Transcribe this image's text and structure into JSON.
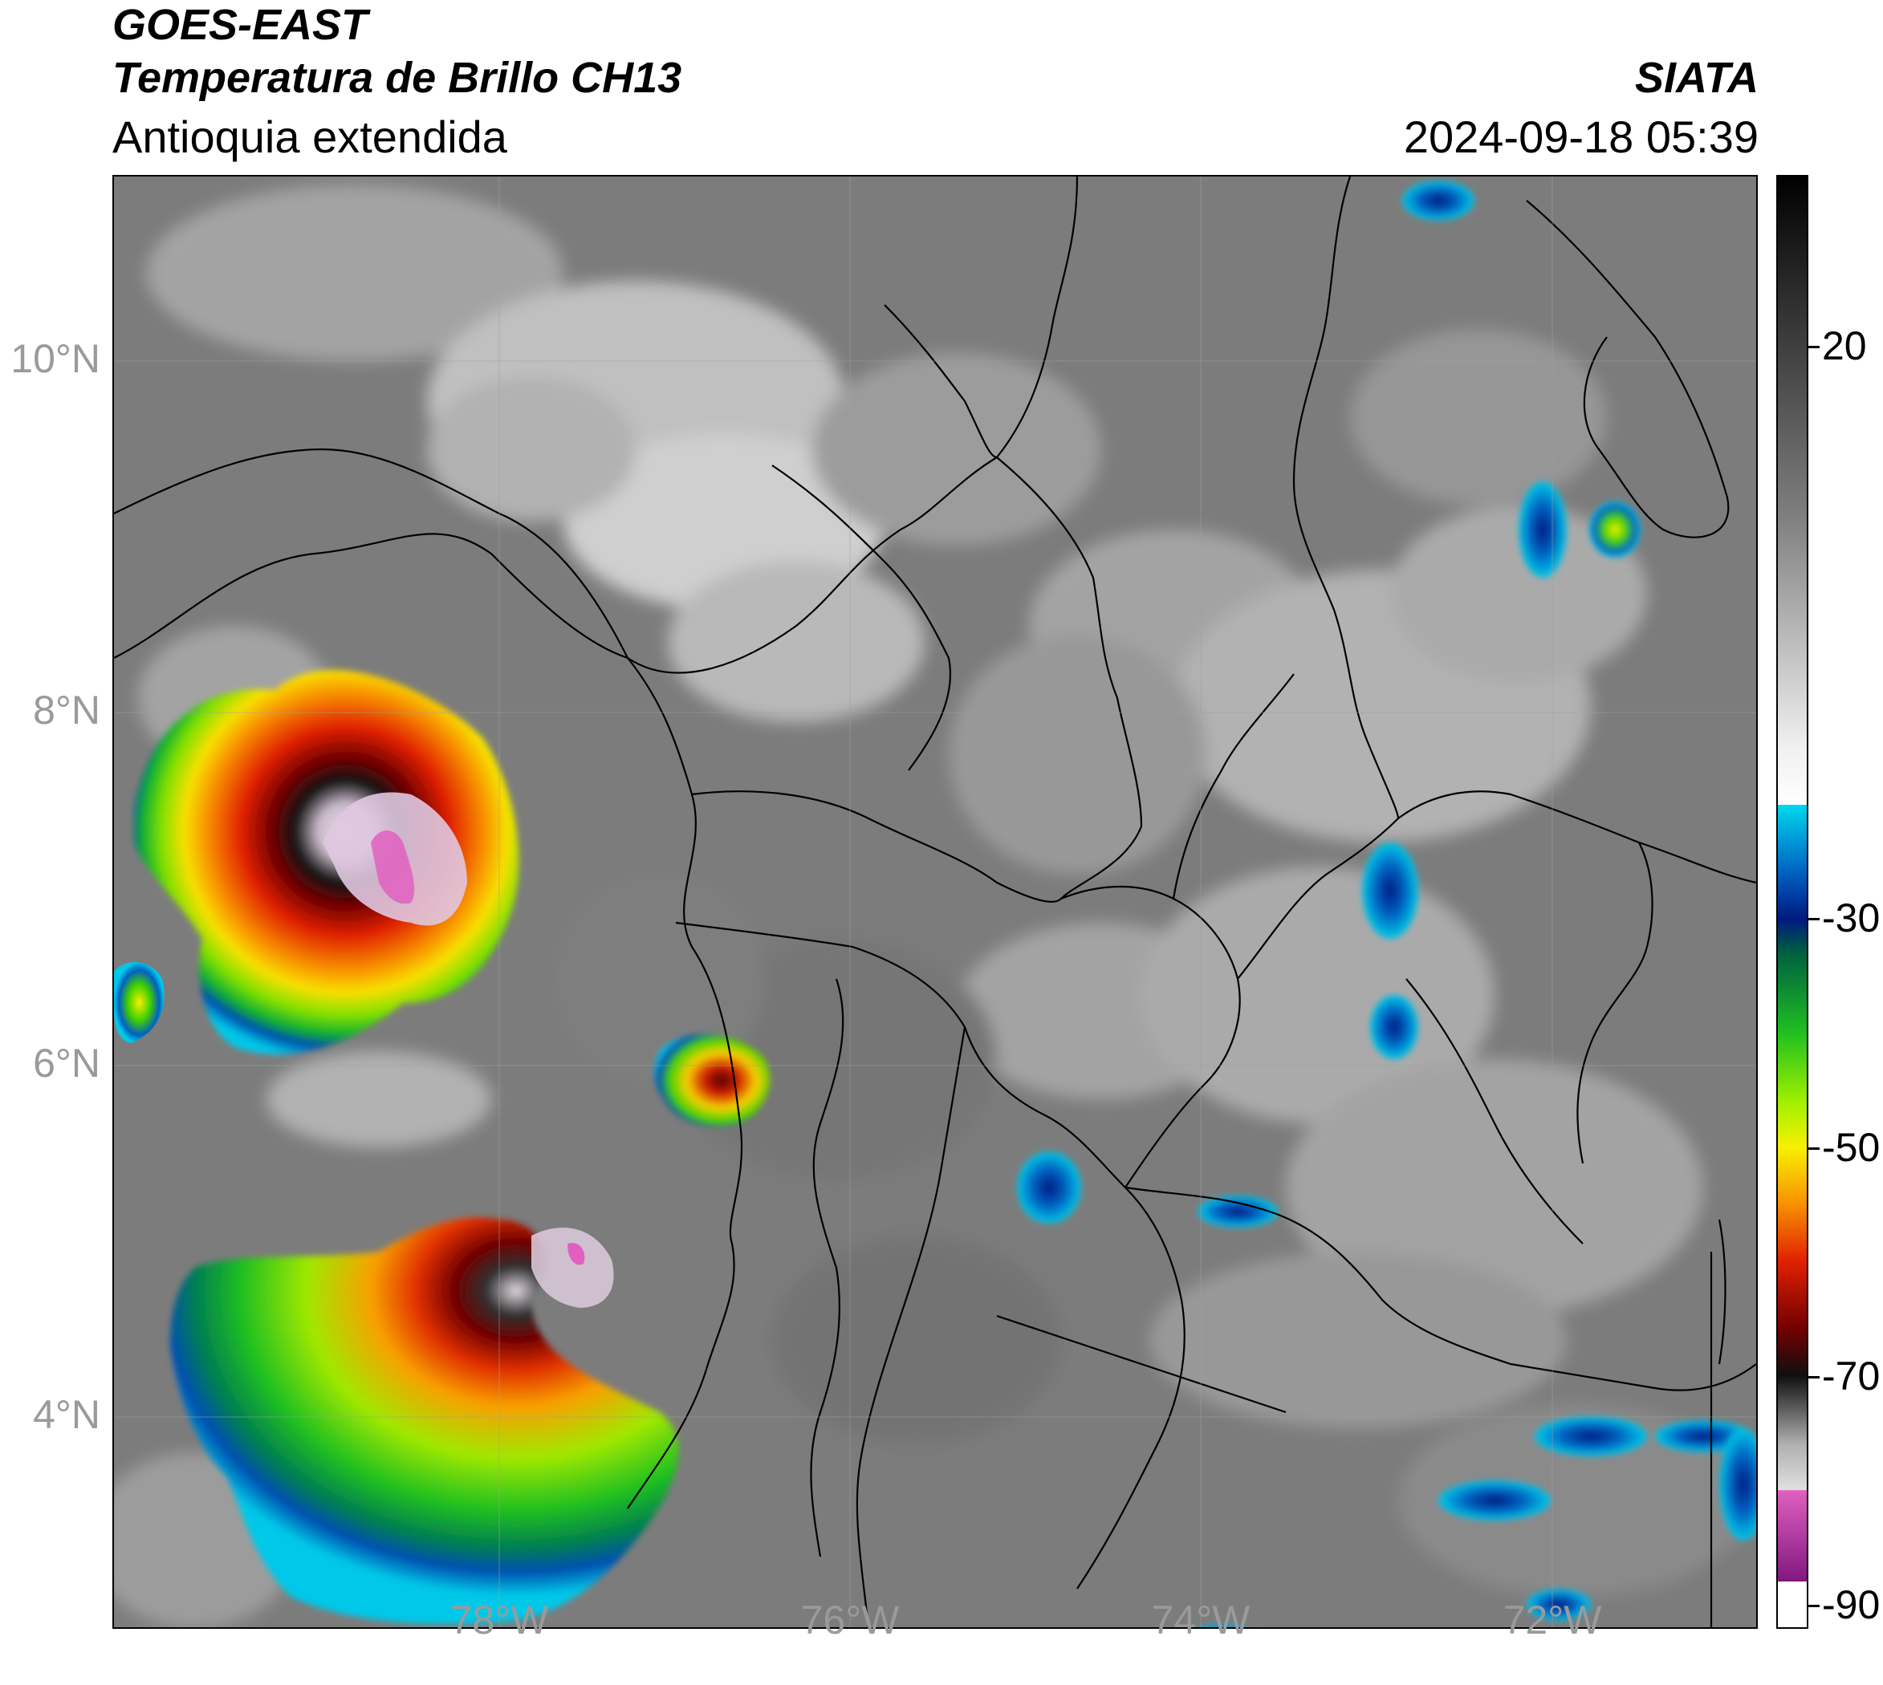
{
  "header": {
    "satellite": "GOES-EAST",
    "product": "Temperatura de Brillo CH13",
    "region": "Antioquia extendida",
    "agency": "SIATA",
    "datetime": "2024-09-18 05:39"
  },
  "map": {
    "latitude_labels": [
      "10°N",
      "8°N",
      "6°N",
      "4°N"
    ],
    "longitude_labels": [
      "78°W",
      "76°W",
      "74°W",
      "72°W"
    ]
  },
  "colorbar": {
    "labels": [
      "20",
      "-30",
      "-50",
      "-70",
      "-90"
    ],
    "values": [
      20,
      -30,
      -50,
      -70,
      -90
    ],
    "range": [
      -92,
      35
    ],
    "colors": {
      "warm": "#000000",
      "mid_gray": "#808080",
      "light": "#f0f0f0",
      "cyan": "#00d8f0",
      "blue": "#0060c0",
      "navy": "#001a80",
      "green": "#20c020",
      "lime": "#a0f000",
      "yellow": "#f8f000",
      "orange": "#f89000",
      "red": "#e02000",
      "darkred": "#700000",
      "black": "#101010",
      "pink": "#e060c0",
      "purple": "#801880"
    }
  }
}
